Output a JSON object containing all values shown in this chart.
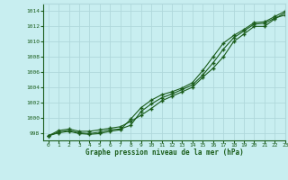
{
  "title": "Graphe pression niveau de la mer (hPa)",
  "bg_color": "#c8eef0",
  "grid_color": "#b0d8db",
  "line_color": "#1a5c1a",
  "xlim": [
    -0.5,
    23
  ],
  "ylim": [
    997,
    1015
  ],
  "yticks": [
    998,
    1000,
    1002,
    1004,
    1006,
    1008,
    1010,
    1012,
    1014
  ],
  "xticks": [
    0,
    1,
    2,
    3,
    4,
    5,
    6,
    7,
    8,
    9,
    10,
    11,
    12,
    13,
    14,
    15,
    16,
    17,
    18,
    19,
    20,
    21,
    22,
    23
  ],
  "line1": [
    997.6,
    998.3,
    998.5,
    998.2,
    998.2,
    998.4,
    998.6,
    998.8,
    999.5,
    1000.3,
    1001.2,
    1002.2,
    1002.8,
    1003.4,
    1004.0,
    1005.3,
    1006.5,
    1008.0,
    1010.0,
    1011.0,
    1012.0,
    1012.0,
    1013.0,
    1013.8
  ],
  "line2": [
    997.6,
    998.1,
    998.3,
    998.0,
    997.9,
    998.1,
    998.4,
    998.5,
    999.0,
    1000.8,
    1001.8,
    1002.6,
    1003.1,
    1003.7,
    1004.3,
    1005.6,
    1007.2,
    1009.0,
    1010.5,
    1011.4,
    1012.3,
    1012.4,
    1013.1,
    1013.5
  ],
  "line3": [
    997.6,
    998.0,
    998.2,
    997.9,
    997.8,
    997.9,
    998.2,
    998.4,
    999.8,
    1001.3,
    1002.3,
    1003.0,
    1003.4,
    1003.9,
    1004.6,
    1006.2,
    1008.0,
    1009.8,
    1010.8,
    1011.6,
    1012.5,
    1012.6,
    1013.3,
    1014.0
  ]
}
